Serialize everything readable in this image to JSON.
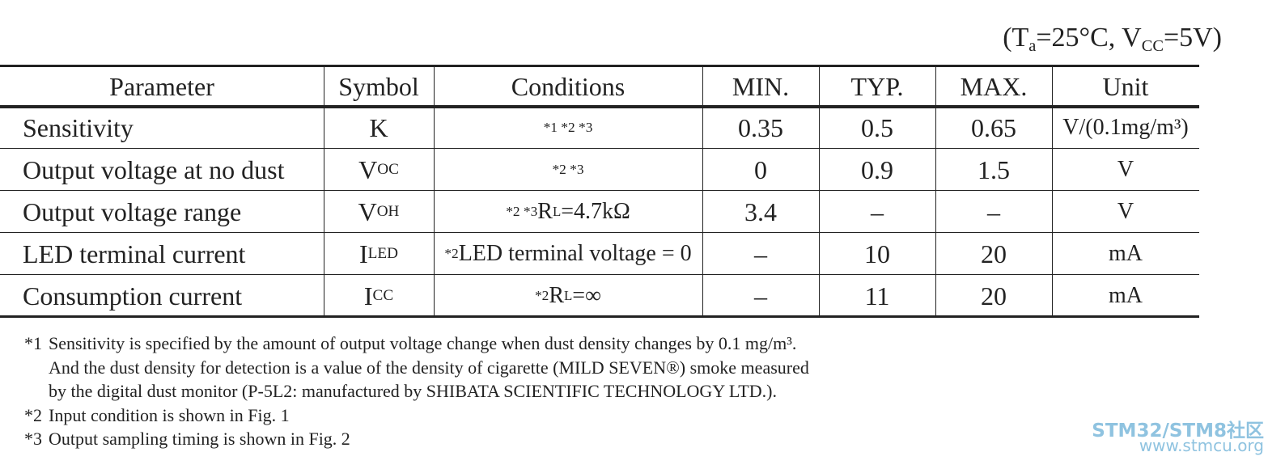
{
  "header": {
    "conditions": {
      "text": "(T",
      "sub": "a",
      "mid": "=25°C, V",
      "sub2": "CC",
      "tail": "=5V)"
    }
  },
  "table": {
    "columns": [
      "Parameter",
      "Symbol",
      "Conditions",
      "MIN.",
      "TYP.",
      "MAX.",
      "Unit"
    ],
    "rows": [
      [
        "Sensitivity",
        "K",
        {
          "refs": "*1 *2 *3"
        },
        "0.35",
        "0.5",
        "0.65",
        "V/(0.1mg/m³)"
      ],
      [
        "Output voltage at no dust",
        {
          "text": "V",
          "sub": "OC"
        },
        {
          "refs": "*2 *3"
        },
        "0",
        "0.9",
        "1.5",
        "V"
      ],
      [
        "Output voltage range",
        {
          "text": "V",
          "sub": "OH"
        },
        {
          "refs": "*2 *3",
          "text": " R",
          "sub": "L",
          "tail": " =4.7kΩ"
        },
        "3.4",
        "–",
        "–",
        "V"
      ],
      [
        "LED terminal current",
        {
          "text": "I",
          "sub": "LED"
        },
        {
          "refs": "*2",
          "text": " LED terminal voltage = 0"
        },
        "–",
        "10",
        "20",
        "mA"
      ],
      [
        "Consumption current",
        {
          "text": "I",
          "sub": "CC"
        },
        {
          "refs": "*2",
          "text": " R",
          "sub": "L",
          "tail": " =∞"
        },
        "–",
        "11",
        "20",
        "mA"
      ]
    ]
  },
  "footnotes": [
    {
      "mark": "*1",
      "lines": [
        "Sensitivity is specified by the amount of output voltage change when dust density changes by 0.1 mg/m³.",
        "And the dust density for detection is a value of the density of cigarette (MILD SEVEN®) smoke measured",
        "by the digital dust monitor (P-5L2:  manufactured by SHIBATA SCIENTIFIC TECHNOLOGY LTD.)."
      ]
    },
    {
      "mark": "*2",
      "lines": [
        "Input condition is shown in Fig. 1"
      ]
    },
    {
      "mark": "*3",
      "lines": [
        "Output sampling timing is shown in Fig. 2"
      ]
    }
  ],
  "watermark": {
    "brand": "STM32/STM8社区",
    "url": "www.stmcu.org"
  }
}
